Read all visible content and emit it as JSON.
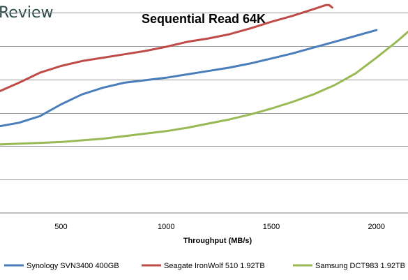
{
  "header": {
    "brand_fragment": "Review"
  },
  "chart_data": {
    "type": "line",
    "title": "Sequential Read 64K",
    "xlabel": "Throughput (MB/s)",
    "ylabel": "",
    "xlim": [
      210,
      2150
    ],
    "ylim": [
      0,
      12
    ],
    "xticks": [
      500,
      1000,
      1500,
      2000
    ],
    "tick_labels": [
      "500",
      "1000",
      "1500",
      "2000"
    ],
    "y_gridlines": [
      2,
      4,
      6,
      8,
      10,
      12
    ],
    "legend_position": "bottom",
    "grid": true,
    "series": [
      {
        "name": "Synology SVN3400 400GB",
        "color": "#4a7ebb",
        "points": [
          [
            210,
            5.2
          ],
          [
            300,
            5.4
          ],
          [
            400,
            5.8
          ],
          [
            500,
            6.5
          ],
          [
            600,
            7.1
          ],
          [
            700,
            7.5
          ],
          [
            800,
            7.8
          ],
          [
            900,
            7.95
          ],
          [
            1000,
            8.1
          ],
          [
            1100,
            8.3
          ],
          [
            1200,
            8.5
          ],
          [
            1300,
            8.7
          ],
          [
            1400,
            8.95
          ],
          [
            1500,
            9.25
          ],
          [
            1600,
            9.55
          ],
          [
            1700,
            9.9
          ],
          [
            1800,
            10.25
          ],
          [
            1900,
            10.6
          ],
          [
            2000,
            10.95
          ]
        ]
      },
      {
        "name": "Seagate IronWolf 510 1.92TB",
        "color": "#be4b48",
        "points": [
          [
            210,
            7.3
          ],
          [
            300,
            7.8
          ],
          [
            400,
            8.4
          ],
          [
            500,
            8.8
          ],
          [
            600,
            9.1
          ],
          [
            700,
            9.3
          ],
          [
            800,
            9.5
          ],
          [
            900,
            9.7
          ],
          [
            1000,
            9.95
          ],
          [
            1100,
            10.25
          ],
          [
            1200,
            10.45
          ],
          [
            1300,
            10.7
          ],
          [
            1400,
            11.05
          ],
          [
            1500,
            11.45
          ],
          [
            1600,
            11.8
          ],
          [
            1700,
            12.2
          ],
          [
            1760,
            12.45
          ],
          [
            1775,
            12.45
          ],
          [
            1790,
            12.3
          ]
        ]
      },
      {
        "name": "Samsung DCT983 1.92TB",
        "color": "#98b954",
        "points": [
          [
            210,
            4.1
          ],
          [
            300,
            4.15
          ],
          [
            400,
            4.2
          ],
          [
            500,
            4.25
          ],
          [
            600,
            4.35
          ],
          [
            700,
            4.45
          ],
          [
            800,
            4.6
          ],
          [
            900,
            4.75
          ],
          [
            1000,
            4.9
          ],
          [
            1100,
            5.1
          ],
          [
            1200,
            5.35
          ],
          [
            1300,
            5.6
          ],
          [
            1400,
            5.9
          ],
          [
            1500,
            6.25
          ],
          [
            1600,
            6.65
          ],
          [
            1700,
            7.1
          ],
          [
            1800,
            7.65
          ],
          [
            1900,
            8.35
          ],
          [
            2000,
            9.3
          ],
          [
            2100,
            10.3
          ],
          [
            2150,
            10.85
          ]
        ]
      }
    ]
  }
}
